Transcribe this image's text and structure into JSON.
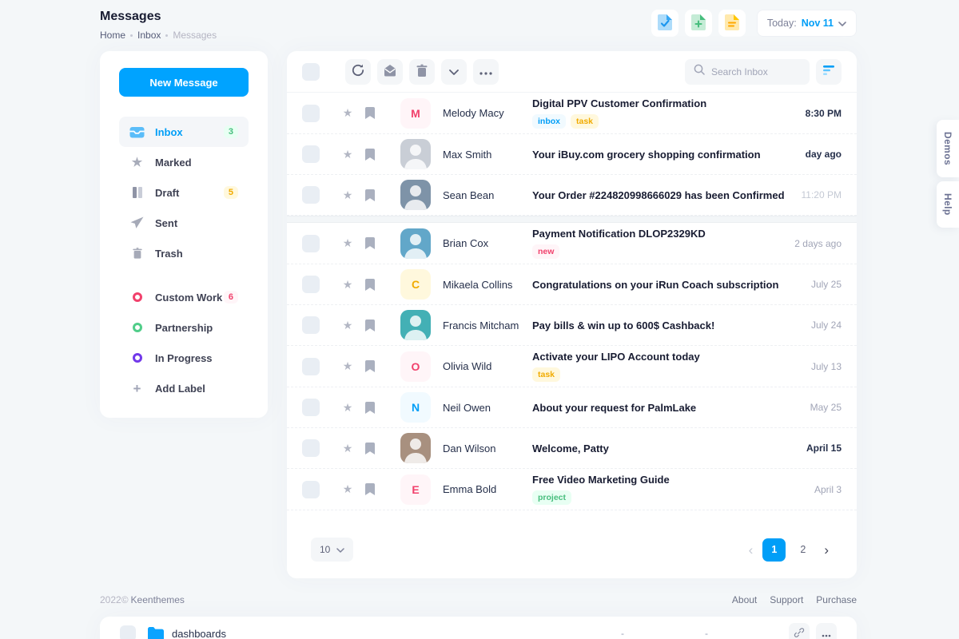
{
  "page": {
    "title": "Messages",
    "breadcrumb": [
      "Home",
      "Inbox",
      "Messages"
    ]
  },
  "header": {
    "actions": [
      "file-check-icon",
      "file-plus-icon",
      "file-lines-icon"
    ],
    "date_label": "Today:",
    "date_value": "Nov 11"
  },
  "sidebar": {
    "new_message_label": "New Message",
    "folders": [
      {
        "label": "Inbox",
        "icon": "inbox-icon",
        "badge": "3",
        "badge_color": "green",
        "active": true
      },
      {
        "label": "Marked",
        "icon": "star-icon"
      },
      {
        "label": "Draft",
        "icon": "draft-icon",
        "badge": "5",
        "badge_color": "yellow"
      },
      {
        "label": "Sent",
        "icon": "send-icon"
      },
      {
        "label": "Trash",
        "icon": "trash-icon"
      }
    ],
    "labels": [
      {
        "label": "Custom Work",
        "dot_color": "#f1416c",
        "badge": "6",
        "badge_color": "red"
      },
      {
        "label": "Partnership",
        "dot_color": "#50cd89"
      },
      {
        "label": "In Progress",
        "dot_color": "#7239ea"
      },
      {
        "label": "Add Label",
        "icon": "plus-icon"
      }
    ]
  },
  "toolbar": {
    "icons": [
      "refresh-icon",
      "archive-icon",
      "trash-icon",
      "chevron-down-icon",
      "ellipsis-icon"
    ],
    "search_placeholder": "Search Inbox",
    "filter_icon": "filter-icon"
  },
  "messages": [
    {
      "sender": "Melody Macy",
      "avatar": {
        "type": "initial",
        "text": "M",
        "color": "#f1416c",
        "bg": "#fff5f8"
      },
      "subject": "Digital PPV Customer Confirmation",
      "badges": [
        {
          "text": "inbox",
          "color": "blue"
        },
        {
          "text": "task",
          "color": "yellow"
        }
      ],
      "time": "8:30 PM",
      "time_style": "strong"
    },
    {
      "sender": "Max Smith",
      "avatar": {
        "type": "photo",
        "bg": "#c9ced6"
      },
      "subject": "Your iBuy.com grocery shopping confirmation",
      "badges": [],
      "time": "day ago",
      "time_style": "strong"
    },
    {
      "sender": "Sean Bean",
      "avatar": {
        "type": "photo",
        "bg": "#7e93a8"
      },
      "subject": "Your Order #224820998666029 has been Confirmed",
      "badges": [],
      "time": "11:20 PM",
      "time_style": "light",
      "section_break": true
    },
    {
      "sender": "Brian Cox",
      "avatar": {
        "type": "photo",
        "bg": "#62a7c9"
      },
      "subject": "Payment Notification DLOP2329KD",
      "badges": [
        {
          "text": "new",
          "color": "red"
        }
      ],
      "time": "2 days ago",
      "time_style": "normal"
    },
    {
      "sender": "Mikaela Collins",
      "avatar": {
        "type": "initial",
        "text": "C",
        "color": "#f1ab00",
        "bg": "#fff8dd"
      },
      "subject": "Congratulations on your iRun Coach subscription",
      "badges": [],
      "time": "July 25",
      "time_style": "normal"
    },
    {
      "sender": "Francis Mitcham",
      "avatar": {
        "type": "photo",
        "bg": "#43b0b5"
      },
      "subject": "Pay bills & win up to 600$ Cashback!",
      "badges": [],
      "time": "July 24",
      "time_style": "normal"
    },
    {
      "sender": "Olivia Wild",
      "avatar": {
        "type": "initial",
        "text": "O",
        "color": "#f1416c",
        "bg": "#fff5f8"
      },
      "subject": "Activate your LIPO Account today",
      "badges": [
        {
          "text": "task",
          "color": "yellow"
        }
      ],
      "time": "July 13",
      "time_style": "normal"
    },
    {
      "sender": "Neil Owen",
      "avatar": {
        "type": "initial",
        "text": "N",
        "color": "#009ef7",
        "bg": "#f1faff"
      },
      "subject": "About your request for PalmLake",
      "badges": [],
      "time": "May 25",
      "time_style": "normal"
    },
    {
      "sender": "Dan Wilson",
      "avatar": {
        "type": "photo",
        "bg": "#a8907f"
      },
      "subject": "Welcome, Patty",
      "badges": [],
      "time": "April 15",
      "time_style": "strong"
    },
    {
      "sender": "Emma Bold",
      "avatar": {
        "type": "initial",
        "text": "E",
        "color": "#f1416c",
        "bg": "#fff5f8"
      },
      "subject": "Free Video Marketing Guide",
      "badges": [
        {
          "text": "project",
          "color": "green"
        }
      ],
      "time": "April 3",
      "time_style": "normal"
    }
  ],
  "pagination": {
    "page_size": "10",
    "pages": [
      "1",
      "2"
    ],
    "active_page": "1",
    "prev": "‹",
    "next": "›"
  },
  "footer": {
    "copyright": "2022©",
    "brand": "Keenthemes",
    "links": [
      "About",
      "Support",
      "Purchase"
    ]
  },
  "bottom_row": {
    "name": "dashboards",
    "cells": [
      "-",
      "-"
    ],
    "icons": [
      "link-icon",
      "ellipsis-icon"
    ]
  },
  "side_tabs": [
    "Demos",
    "Help"
  ],
  "colors": {
    "primary": "#009ef7",
    "button": "#00a3ff",
    "success": "#50cd89",
    "warning": "#ffc700",
    "danger": "#f1416c",
    "purple": "#7239ea"
  }
}
